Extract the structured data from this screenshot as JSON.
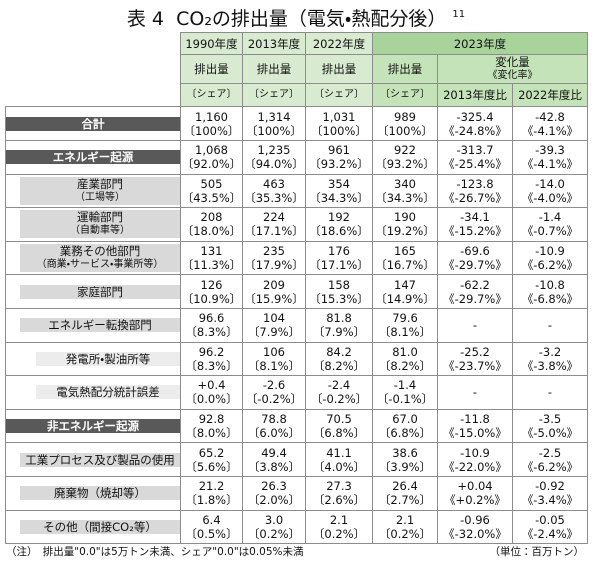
{
  "title": {
    "prefix": "表 4",
    "text": "CO₂の排出量（電気・熱配分後）",
    "footnote_ref": "11"
  },
  "header": {
    "years": [
      "1990年度",
      "2013年度",
      "2022年度",
      "2023年度"
    ],
    "emission_label": "排出量",
    "share_label": "〔シェア〕",
    "change_label": [
      "変化量",
      "《変化率》"
    ],
    "compare": [
      "2013年度比",
      "2022年度比"
    ]
  },
  "rows": [
    {
      "label": [
        "合計"
      ],
      "cells": [
        [
          "1,160",
          "〔100%〕"
        ],
        [
          "1,314",
          "〔100%〕"
        ],
        [
          "1,031",
          "〔100%〕"
        ],
        [
          "989",
          "〔100%〕"
        ]
      ],
      "changes": [
        [
          "-325.4",
          "《-24.8%》"
        ],
        [
          "-42.8",
          "《-4.1%》"
        ]
      ]
    },
    {
      "label": [
        "エネルギー起源"
      ],
      "cells": [
        [
          "1,068",
          "〔92.0%〕"
        ],
        [
          "1,235",
          "〔94.0%〕"
        ],
        [
          "961",
          "〔93.2%〕"
        ],
        [
          "922",
          "〔93.2%〕"
        ]
      ],
      "changes": [
        [
          "-313.7",
          "《-25.4%》"
        ],
        [
          "-39.3",
          "《-4.1%》"
        ]
      ]
    },
    {
      "label": [
        "産業部門",
        "（工場等）"
      ],
      "cells": [
        [
          "505",
          "〔43.5%〕"
        ],
        [
          "463",
          "〔35.3%〕"
        ],
        [
          "354",
          "〔34.3%〕"
        ],
        [
          "340",
          "〔34.3%〕"
        ]
      ],
      "changes": [
        [
          "-123.8",
          "《-26.7%》"
        ],
        [
          "-14.0",
          "《-4.0%》"
        ]
      ]
    },
    {
      "label": [
        "運輸部門",
        "（自動車等）"
      ],
      "cells": [
        [
          "208",
          "〔18.0%〕"
        ],
        [
          "224",
          "〔17.1%〕"
        ],
        [
          "192",
          "〔18.6%〕"
        ],
        [
          "190",
          "〔19.2%〕"
        ]
      ],
      "changes": [
        [
          "-34.1",
          "《-15.2%》"
        ],
        [
          "-1.4",
          "《-0.7%》"
        ]
      ]
    },
    {
      "label": [
        "業務その他部門",
        "（商業・サービス・事業所等）"
      ],
      "cells": [
        [
          "131",
          "〔11.3%〕"
        ],
        [
          "235",
          "〔17.9%〕"
        ],
        [
          "176",
          "〔17.1%〕"
        ],
        [
          "165",
          "〔16.7%〕"
        ]
      ],
      "changes": [
        [
          "-69.6",
          "《-29.7%》"
        ],
        [
          "-10.9",
          "《-6.2%》"
        ]
      ]
    },
    {
      "label": [
        "家庭部門"
      ],
      "cells": [
        [
          "126",
          "〔10.9%〕"
        ],
        [
          "209",
          "〔15.9%〕"
        ],
        [
          "158",
          "〔15.3%〕"
        ],
        [
          "147",
          "〔14.9%〕"
        ]
      ],
      "changes": [
        [
          "-62.2",
          "《-29.7%》"
        ],
        [
          "-10.8",
          "《-6.8%》"
        ]
      ]
    },
    {
      "label": [
        "エネルギー転換部門"
      ],
      "cells": [
        [
          "96.6",
          "〔8.3%〕"
        ],
        [
          "104",
          "〔7.9%〕"
        ],
        [
          "81.8",
          "〔7.9%〕"
        ],
        [
          "79.6",
          "〔8.1%〕"
        ]
      ],
      "changes": [
        [
          "-"
        ],
        [
          "-"
        ]
      ]
    },
    {
      "label": [
        "発電所・製油所等"
      ],
      "cells": [
        [
          "96.2",
          "〔8.3%〕"
        ],
        [
          "106",
          "〔8.1%〕"
        ],
        [
          "84.2",
          "〔8.2%〕"
        ],
        [
          "81.0",
          "〔8.2%〕"
        ]
      ],
      "changes": [
        [
          "-25.2",
          "《-23.7%》"
        ],
        [
          "-3.2",
          "《-3.8%》"
        ]
      ]
    },
    {
      "label": [
        "電気熱配分統計誤差"
      ],
      "cells": [
        [
          "+0.4",
          "〔0.0%〕"
        ],
        [
          "-2.6",
          "〔-0.2%〕"
        ],
        [
          "-2.4",
          "〔-0.2%〕"
        ],
        [
          "-1.4",
          "〔-0.1%〕"
        ]
      ],
      "changes": [
        [
          "-"
        ],
        [
          "-"
        ]
      ]
    },
    {
      "label": [
        "非エネルギー起源"
      ],
      "cells": [
        [
          "92.8",
          "〔8.0%〕"
        ],
        [
          "78.8",
          "〔6.0%〕"
        ],
        [
          "70.5",
          "〔6.8%〕"
        ],
        [
          "67.0",
          "〔6.8%〕"
        ]
      ],
      "changes": [
        [
          "-11.8",
          "《-15.0%》"
        ],
        [
          "-3.5",
          "《-5.0%》"
        ]
      ]
    },
    {
      "label": [
        "工業プロセス及び製品の使用"
      ],
      "cells": [
        [
          "65.2",
          "〔5.6%〕"
        ],
        [
          "49.4",
          "〔3.8%〕"
        ],
        [
          "41.1",
          "〔4.0%〕"
        ],
        [
          "38.6",
          "〔3.9%〕"
        ]
      ],
      "changes": [
        [
          "-10.9",
          "《-22.0%》"
        ],
        [
          "-2.5",
          "《-6.2%》"
        ]
      ]
    },
    {
      "label": [
        "廃棄物（焼却等）"
      ],
      "cells": [
        [
          "21.2",
          "〔1.8%〕"
        ],
        [
          "26.3",
          "〔2.0%〕"
        ],
        [
          "27.3",
          "〔2.6%〕"
        ],
        [
          "26.4",
          "〔2.7%〕"
        ]
      ],
      "changes": [
        [
          "+0.04",
          "《+0.2%》"
        ],
        [
          "-0.92",
          "《-3.4%》"
        ]
      ]
    },
    {
      "label": [
        "その他（間接CO₂等）"
      ],
      "cells": [
        [
          "6.4",
          "〔0.5%〕"
        ],
        [
          "3.0",
          "〔0.2%〕"
        ],
        [
          "2.1",
          "〔0.2%〕"
        ],
        [
          "2.1",
          "〔0.2%〕"
        ]
      ],
      "changes": [
        [
          "-0.96",
          "《-32.0%》"
        ],
        [
          "-0.05",
          "《-2.4%》"
        ]
      ]
    }
  ],
  "footer": {
    "note": "（注）　排出量\"0.0\"は5万トン未満、シェア\"0.0\"は0.05%未満",
    "unit": "（単位：百万トン）"
  }
}
